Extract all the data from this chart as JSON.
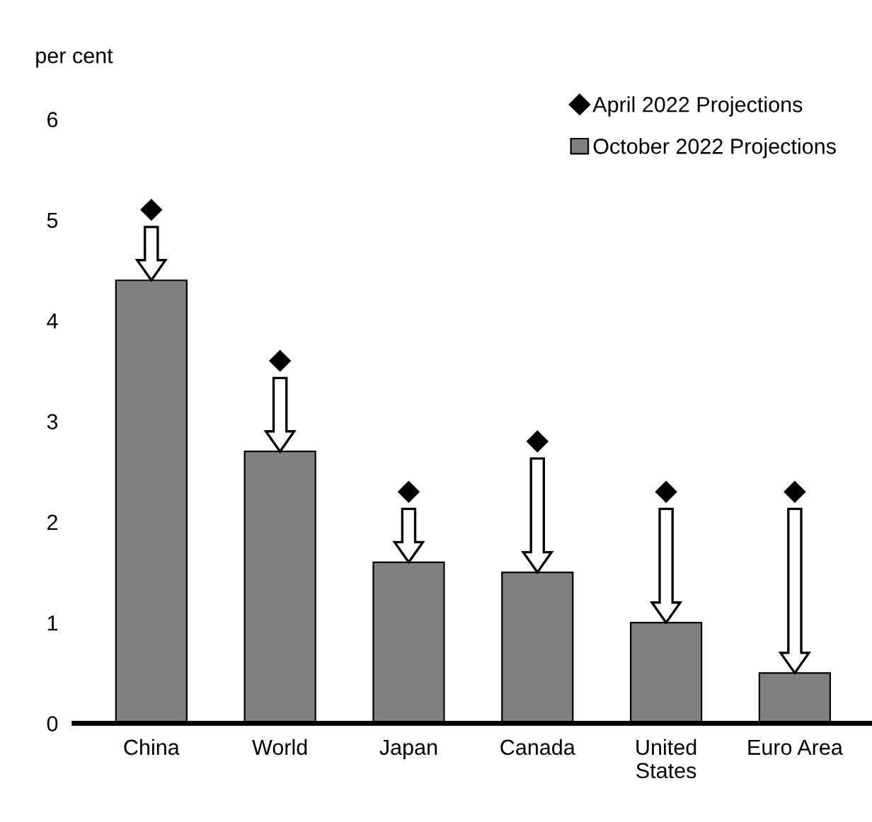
{
  "chart_data": {
    "type": "bar",
    "ylabel": "per cent",
    "categories": [
      "China",
      "World",
      "Japan",
      "Canada",
      "United\nStates",
      "Euro Area"
    ],
    "series": [
      {
        "name": "April 2022 Projections",
        "type": "scatter",
        "color": "#000000",
        "marker": "diamond",
        "values": [
          5.1,
          3.6,
          2.3,
          2.8,
          2.3,
          2.3
        ]
      },
      {
        "name": "October 2022 Projections",
        "color": "#808080",
        "values": [
          4.4,
          2.7,
          1.6,
          1.5,
          1.0,
          0.5
        ]
      }
    ],
    "ylim": [
      0,
      6
    ],
    "yticks": [
      0,
      1,
      2,
      3,
      4,
      5,
      6
    ],
    "grid": false,
    "legend": "top right"
  }
}
